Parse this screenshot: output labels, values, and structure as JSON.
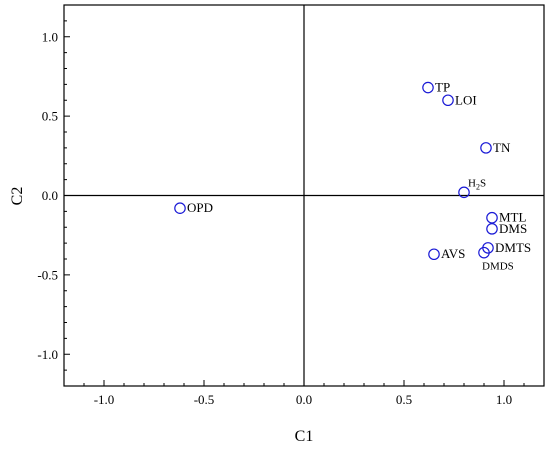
{
  "chart_data": {
    "type": "scatter",
    "title": "",
    "xlabel": "C1",
    "ylabel": "C2",
    "xlim": [
      -1.2,
      1.2
    ],
    "ylim": [
      -1.2,
      1.2
    ],
    "xticks": [
      "-1.0",
      "-0.5",
      "0.0",
      "0.5",
      "1.0"
    ],
    "yticks": [
      "1.0",
      "0.5",
      "0.0",
      "-0.5",
      "-1.0"
    ],
    "marker_color": "#1a1ad6",
    "points": [
      {
        "label": "TP",
        "x": 0.62,
        "y": 0.68
      },
      {
        "label": "LOI",
        "x": 0.72,
        "y": 0.6
      },
      {
        "label": "TN",
        "x": 0.91,
        "y": 0.3
      },
      {
        "label_main": "H",
        "label_sub": "2",
        "label_tail": "S",
        "x": 0.8,
        "y": 0.02
      },
      {
        "label": "OPD",
        "x": -0.62,
        "y": -0.08
      },
      {
        "label": "MTL",
        "x": 0.94,
        "y": -0.14
      },
      {
        "label": "DMS",
        "x": 0.94,
        "y": -0.21
      },
      {
        "label": "DMTS",
        "x": 0.92,
        "y": -0.33
      },
      {
        "label": "DMDS",
        "x": 0.9,
        "y": -0.36
      },
      {
        "label": "AVS",
        "x": 0.65,
        "y": -0.37
      }
    ]
  }
}
